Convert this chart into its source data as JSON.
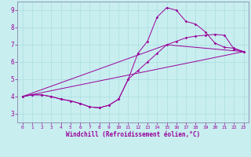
{
  "xlabel": "Windchill (Refroidissement éolien,°C)",
  "background_color": "#c8eef0",
  "line_color": "#990099",
  "xlim": [
    -0.5,
    23.5
  ],
  "ylim": [
    2.5,
    9.5
  ],
  "xticks": [
    0,
    1,
    2,
    3,
    4,
    5,
    6,
    7,
    8,
    9,
    10,
    11,
    12,
    13,
    14,
    15,
    16,
    17,
    18,
    19,
    20,
    21,
    22,
    23
  ],
  "yticks": [
    3,
    4,
    5,
    6,
    7,
    8,
    9
  ],
  "grid_color": "#aadddd",
  "spine_color": "#8888aa",
  "line1_x": [
    0,
    1,
    2,
    3,
    4,
    5,
    6,
    7,
    8,
    9,
    10,
    11,
    12,
    13,
    14,
    15,
    16,
    17,
    18,
    19,
    20,
    21,
    22,
    23
  ],
  "line1_y": [
    4.0,
    4.1,
    4.1,
    4.0,
    3.85,
    3.75,
    3.6,
    3.4,
    3.35,
    3.5,
    3.85,
    5.0,
    6.5,
    7.2,
    8.6,
    9.15,
    9.0,
    8.35,
    8.2,
    7.75,
    7.1,
    6.85,
    6.8,
    6.6
  ],
  "line2_x": [
    0,
    1,
    2,
    3,
    4,
    5,
    6,
    7,
    8,
    9,
    10,
    11,
    12,
    13,
    14,
    15,
    16,
    17,
    18,
    19,
    20,
    21,
    22,
    23
  ],
  "line2_y": [
    4.0,
    4.1,
    4.1,
    4.0,
    3.85,
    3.75,
    3.6,
    3.4,
    3.35,
    3.5,
    3.85,
    5.0,
    5.5,
    6.0,
    6.5,
    7.0,
    7.2,
    7.4,
    7.5,
    7.55,
    7.6,
    7.55,
    6.75,
    6.6
  ],
  "line3_x": [
    0,
    23
  ],
  "line3_y": [
    4.0,
    6.6
  ],
  "line4_x": [
    0,
    15,
    23
  ],
  "line4_y": [
    4.0,
    7.0,
    6.6
  ]
}
